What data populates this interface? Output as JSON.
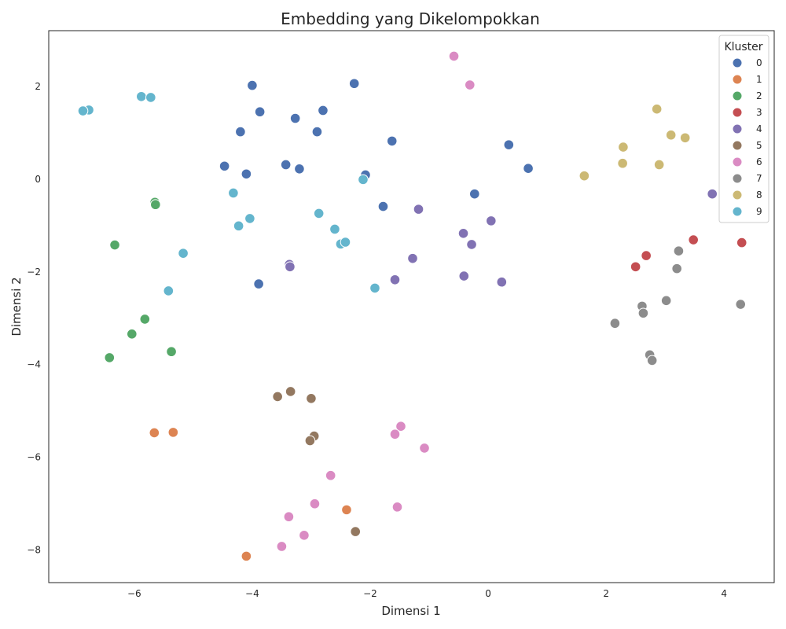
{
  "chart_data": {
    "type": "scatter",
    "title": "Embedding yang Dikelompokkan",
    "xlabel": "Dimensi 1",
    "ylabel": "Dimensi 2",
    "xlim": [
      -7.45,
      4.85
    ],
    "ylim": [
      -8.7,
      3.2
    ],
    "xticks": [
      -6,
      -4,
      -2,
      0,
      2,
      4
    ],
    "yticks": [
      -8,
      -6,
      -4,
      -2,
      0,
      2
    ],
    "grid": false,
    "legend": {
      "title": "Kluster",
      "placement": "top-right"
    },
    "series": [
      {
        "name": "0",
        "color": "#4c72b0",
        "points": [
          [
            -4.0,
            2.02
          ],
          [
            -2.27,
            2.06
          ],
          [
            -3.87,
            1.45
          ],
          [
            -3.27,
            1.31
          ],
          [
            -2.8,
            1.48
          ],
          [
            -4.2,
            1.02
          ],
          [
            -2.9,
            1.02
          ],
          [
            -1.63,
            0.82
          ],
          [
            0.35,
            0.74
          ],
          [
            0.68,
            0.23
          ],
          [
            -4.47,
            0.28
          ],
          [
            -4.1,
            0.11
          ],
          [
            -3.43,
            0.31
          ],
          [
            -3.2,
            0.22
          ],
          [
            -2.08,
            0.09
          ],
          [
            -1.78,
            -0.59
          ],
          [
            -0.23,
            -0.32
          ],
          [
            -3.89,
            -2.26
          ]
        ]
      },
      {
        "name": "1",
        "color": "#dd8452",
        "points": [
          [
            -5.66,
            -5.47
          ],
          [
            -5.34,
            -5.46
          ],
          [
            -2.4,
            -7.13
          ],
          [
            -4.1,
            -8.13
          ]
        ]
      },
      {
        "name": "2",
        "color": "#55a868",
        "points": [
          [
            -5.65,
            -0.5
          ],
          [
            -5.64,
            -0.55
          ],
          [
            -6.33,
            -1.42
          ],
          [
            -5.82,
            -3.02
          ],
          [
            -6.04,
            -3.34
          ],
          [
            -5.37,
            -3.72
          ],
          [
            -6.42,
            -3.85
          ]
        ]
      },
      {
        "name": "3",
        "color": "#c44e52",
        "points": [
          [
            3.48,
            -1.31
          ],
          [
            4.3,
            -1.37
          ],
          [
            2.68,
            -1.65
          ],
          [
            2.5,
            -1.89
          ]
        ]
      },
      {
        "name": "4",
        "color": "#8172b3",
        "points": [
          [
            3.8,
            -0.32
          ],
          [
            -1.18,
            -0.65
          ],
          [
            0.05,
            -0.9
          ],
          [
            -0.42,
            -1.17
          ],
          [
            -0.28,
            -1.41
          ],
          [
            -1.28,
            -1.71
          ],
          [
            -3.37,
            -1.84
          ],
          [
            -3.36,
            -1.89
          ],
          [
            -1.58,
            -2.17
          ],
          [
            -0.41,
            -2.09
          ],
          [
            0.23,
            -2.22
          ]
        ]
      },
      {
        "name": "5",
        "color": "#937860",
        "points": [
          [
            -3.57,
            -4.69
          ],
          [
            -3.35,
            -4.58
          ],
          [
            -3.0,
            -4.73
          ],
          [
            -2.95,
            -5.54
          ],
          [
            -3.02,
            -5.64
          ],
          [
            -2.25,
            -7.6
          ]
        ]
      },
      {
        "name": "6",
        "color": "#da8bc3",
        "points": [
          [
            -0.58,
            2.65
          ],
          [
            -0.31,
            2.03
          ],
          [
            -1.48,
            -5.33
          ],
          [
            -1.58,
            -5.5
          ],
          [
            -1.08,
            -5.8
          ],
          [
            -2.67,
            -6.39
          ],
          [
            -2.94,
            -7.0
          ],
          [
            -1.54,
            -7.07
          ],
          [
            -3.38,
            -7.28
          ],
          [
            -3.12,
            -7.68
          ],
          [
            -3.5,
            -7.92
          ]
        ]
      },
      {
        "name": "7",
        "color": "#8c8c8c",
        "points": [
          [
            3.23,
            -1.55
          ],
          [
            3.2,
            -1.93
          ],
          [
            3.02,
            -2.62
          ],
          [
            4.28,
            -2.7
          ],
          [
            2.61,
            -2.74
          ],
          [
            2.63,
            -2.89
          ],
          [
            2.15,
            -3.11
          ],
          [
            2.74,
            -3.79
          ],
          [
            2.78,
            -3.91
          ]
        ]
      },
      {
        "name": "8",
        "color": "#ccb974",
        "points": [
          [
            2.86,
            1.51
          ],
          [
            3.1,
            0.95
          ],
          [
            3.34,
            0.89
          ],
          [
            2.29,
            0.69
          ],
          [
            2.28,
            0.34
          ],
          [
            2.9,
            0.31
          ],
          [
            1.63,
            0.07
          ]
        ]
      },
      {
        "name": "9",
        "color": "#64b5cd",
        "points": [
          [
            -6.77,
            1.49
          ],
          [
            -6.87,
            1.47
          ],
          [
            -5.88,
            1.78
          ],
          [
            -5.72,
            1.76
          ],
          [
            -4.32,
            -0.3
          ],
          [
            -2.12,
            -0.01
          ],
          [
            -4.04,
            -0.85
          ],
          [
            -2.87,
            -0.74
          ],
          [
            -4.23,
            -1.01
          ],
          [
            -2.6,
            -1.08
          ],
          [
            -2.5,
            -1.4
          ],
          [
            -2.42,
            -1.36
          ],
          [
            -5.17,
            -1.6
          ],
          [
            -1.92,
            -2.35
          ],
          [
            -5.42,
            -2.41
          ]
        ]
      }
    ]
  }
}
